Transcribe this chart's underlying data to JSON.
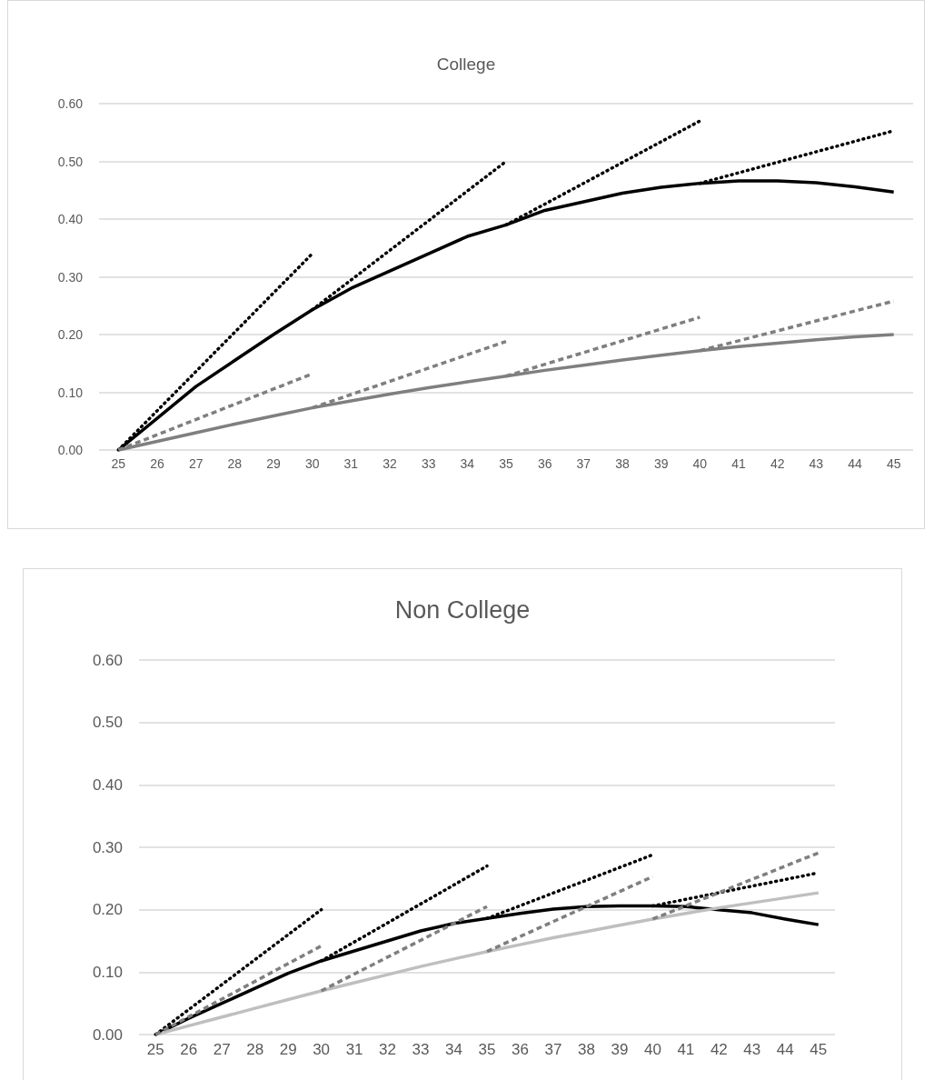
{
  "chart_data": [
    {
      "type": "line",
      "title": "College",
      "categories": [
        "25",
        "26",
        "27",
        "28",
        "29",
        "30",
        "31",
        "32",
        "33",
        "34",
        "35",
        "36",
        "37",
        "38",
        "39",
        "40",
        "41",
        "42",
        "43",
        "44",
        "45"
      ],
      "ylim": [
        0,
        0.6
      ],
      "yticks": [
        {
          "value": 0,
          "label": "0.00"
        },
        {
          "value": 0.1,
          "label": "0.10"
        },
        {
          "value": 0.2,
          "label": "0.20"
        },
        {
          "value": 0.3,
          "label": "0.30"
        },
        {
          "value": 0.4,
          "label": "0.40"
        },
        {
          "value": 0.5,
          "label": "0.50"
        },
        {
          "value": 0.6,
          "label": "0.60"
        }
      ],
      "grid": "y",
      "marker": "none",
      "series": [
        {
          "color": "#000000",
          "line_style": "solid",
          "values": [
            0,
            0.055,
            0.11,
            0.155,
            0.2,
            0.243,
            0.28,
            0.31,
            0.34,
            0.37,
            0.39,
            0.415,
            0.43,
            0.445,
            0.455,
            0.462,
            0.466,
            0.466,
            0.463,
            0.456,
            0.447
          ]
        },
        {
          "color": "#7f7f7f",
          "line_style": "solid",
          "values": [
            0,
            0.015,
            0.03,
            0.045,
            0.059,
            0.073,
            0.085,
            0.097,
            0.108,
            0.118,
            0.128,
            0.138,
            0.147,
            0.156,
            0.164,
            0.172,
            0.179,
            0.185,
            0.191,
            0.196,
            0.2
          ]
        },
        {
          "color": "#000000",
          "line_style": "dotted",
          "x": [
            "25",
            "30"
          ],
          "values": [
            0,
            0.34
          ]
        },
        {
          "color": "#000000",
          "line_style": "dotted",
          "x": [
            "30",
            "35"
          ],
          "values": [
            0.243,
            0.5
          ]
        },
        {
          "color": "#000000",
          "line_style": "dotted",
          "x": [
            "35",
            "40"
          ],
          "values": [
            0.39,
            0.57
          ]
        },
        {
          "color": "#000000",
          "line_style": "dotted",
          "x": [
            "40",
            "45"
          ],
          "values": [
            0.462,
            0.553
          ]
        },
        {
          "color": "#7f7f7f",
          "line_style": "dashed",
          "x": [
            "25",
            "30"
          ],
          "values": [
            0,
            0.132
          ]
        },
        {
          "color": "#7f7f7f",
          "line_style": "dashed",
          "x": [
            "30",
            "35"
          ],
          "values": [
            0.073,
            0.188
          ]
        },
        {
          "color": "#7f7f7f",
          "line_style": "dashed",
          "x": [
            "35",
            "40"
          ],
          "values": [
            0.128,
            0.23
          ]
        },
        {
          "color": "#7f7f7f",
          "line_style": "dashed",
          "x": [
            "40",
            "45"
          ],
          "values": [
            0.172,
            0.258
          ]
        }
      ]
    },
    {
      "type": "line",
      "title": "Non College",
      "categories": [
        "25",
        "26",
        "27",
        "28",
        "29",
        "30",
        "31",
        "32",
        "33",
        "34",
        "35",
        "36",
        "37",
        "38",
        "39",
        "40",
        "41",
        "42",
        "43",
        "44",
        "45"
      ],
      "ylim": [
        0,
        0.6
      ],
      "yticks": [
        {
          "value": 0,
          "label": "0.00"
        },
        {
          "value": 0.1,
          "label": "0.10"
        },
        {
          "value": 0.2,
          "label": "0.20"
        },
        {
          "value": 0.3,
          "label": "0.30"
        },
        {
          "value": 0.4,
          "label": "0.40"
        },
        {
          "value": 0.5,
          "label": "0.50"
        },
        {
          "value": 0.6,
          "label": "0.60"
        }
      ],
      "grid": "y",
      "marker": "none",
      "series": [
        {
          "color": "#000000",
          "line_style": "solid",
          "values": [
            0,
            0.026,
            0.05,
            0.074,
            0.098,
            0.118,
            0.134,
            0.15,
            0.166,
            0.178,
            0.186,
            0.194,
            0.201,
            0.205,
            0.206,
            0.206,
            0.205,
            0.2,
            0.195,
            0.185,
            0.176
          ]
        },
        {
          "color": "#bfbfbf",
          "line_style": "solid",
          "values": [
            0,
            0.014,
            0.028,
            0.042,
            0.056,
            0.07,
            0.083,
            0.096,
            0.109,
            0.121,
            0.133,
            0.144,
            0.155,
            0.165,
            0.175,
            0.185,
            0.194,
            0.203,
            0.211,
            0.219,
            0.227
          ]
        },
        {
          "color": "#000000",
          "line_style": "dotted",
          "x": [
            "25",
            "30"
          ],
          "values": [
            0,
            0.2
          ]
        },
        {
          "color": "#000000",
          "line_style": "dotted",
          "x": [
            "30",
            "35"
          ],
          "values": [
            0.118,
            0.27
          ]
        },
        {
          "color": "#000000",
          "line_style": "dotted",
          "x": [
            "35",
            "40"
          ],
          "values": [
            0.186,
            0.288
          ]
        },
        {
          "color": "#000000",
          "line_style": "dotted",
          "x": [
            "40",
            "45"
          ],
          "values": [
            0.206,
            0.259
          ]
        },
        {
          "color": "#7f7f7f",
          "line_style": "dashed",
          "x": [
            "25",
            "30"
          ],
          "values": [
            0,
            0.142
          ]
        },
        {
          "color": "#7f7f7f",
          "line_style": "dashed",
          "x": [
            "30",
            "35"
          ],
          "values": [
            0.07,
            0.205
          ]
        },
        {
          "color": "#7f7f7f",
          "line_style": "dashed",
          "x": [
            "35",
            "40"
          ],
          "values": [
            0.133,
            0.253
          ]
        },
        {
          "color": "#7f7f7f",
          "line_style": "dashed",
          "x": [
            "40",
            "45"
          ],
          "values": [
            0.185,
            0.291
          ]
        }
      ]
    }
  ]
}
